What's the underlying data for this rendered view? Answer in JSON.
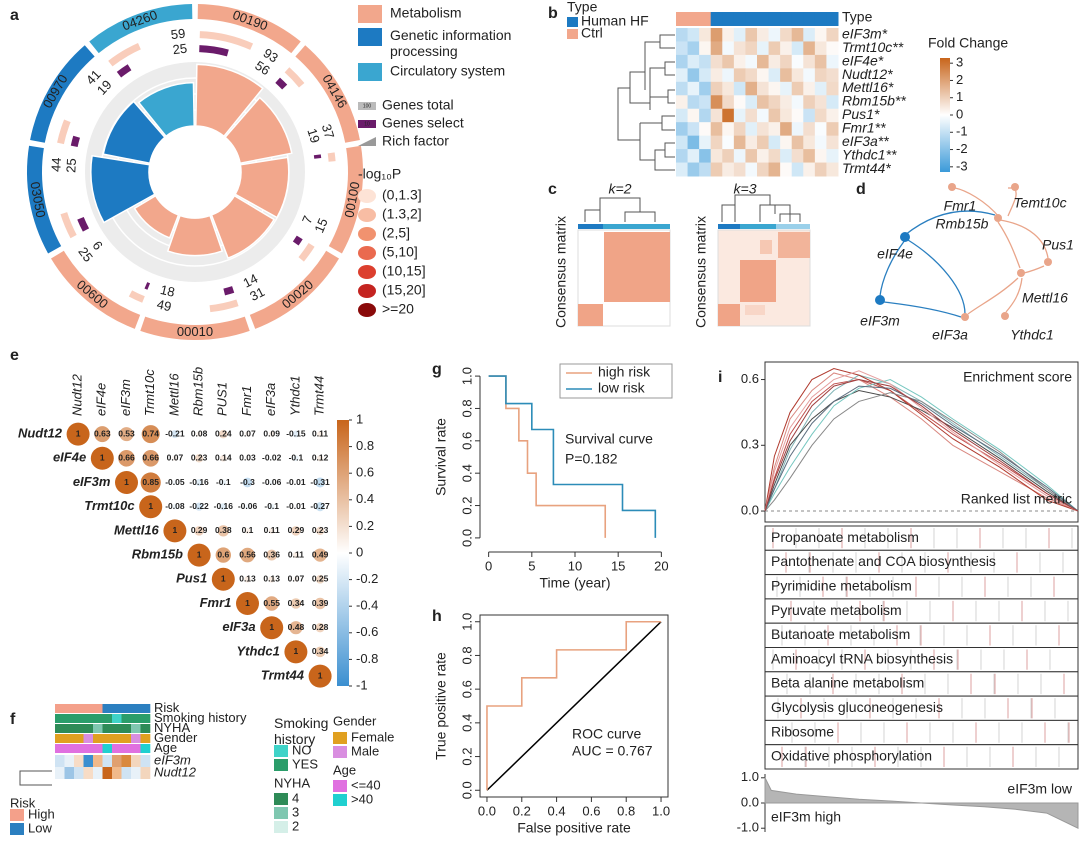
{
  "chart_data": [
    {
      "type": "radial",
      "label": "a",
      "sectors": [
        {
          "name": "00190",
          "total": 93,
          "select": 56,
          "color": "#f2a78c"
        },
        {
          "name": "04146",
          "total": 37,
          "select": 19,
          "color": "#f2a78c"
        },
        {
          "name": "00100",
          "total": 15,
          "select": 7,
          "color": "#f2a78c"
        },
        {
          "name": "00020",
          "total": 31,
          "select": 14,
          "color": "#f2a78c"
        },
        {
          "name": "00010",
          "total": 49,
          "select": 18,
          "color": "#f2a78c"
        },
        {
          "name": "00600",
          "total": 25,
          "select": 6,
          "color": "#f2a78c"
        },
        {
          "name": "03050",
          "total": 44,
          "select": 25,
          "color": "#1d7ac2"
        },
        {
          "name": "00970",
          "total": 41,
          "select": 19,
          "color": "#1d7ac2"
        },
        {
          "name": "04260",
          "total": 59,
          "select": 25,
          "color": "#3aa6d0"
        }
      ],
      "legend": [
        {
          "name": "Metabolism",
          "color": "#f2a78c"
        },
        {
          "name": "Genetic information processing",
          "color": "#1d7ac2"
        },
        {
          "name": "Circulatory system",
          "color": "#3aa6d0"
        }
      ],
      "keys": [
        {
          "name": "Genes total",
          "key": "100",
          "color": "#bbbbbb"
        },
        {
          "name": "Genes select",
          "key": "10",
          "color": "#6a1b6a"
        },
        {
          "name": "Rich factor",
          "color": "#999999"
        }
      ],
      "total_color": "#f9cdbb",
      "select_color": "#6a1b6a",
      "p_title": "-log₁₀P",
      "p_bins": [
        {
          "name": "(0,1.3]",
          "color": "#fde3d6"
        },
        {
          "name": "(1.3,2]",
          "color": "#f8bda4"
        },
        {
          "name": "(2,5]",
          "color": "#f1926f"
        },
        {
          "name": "(5,10]",
          "color": "#ea6a4f"
        },
        {
          "name": "(10,15]",
          "color": "#dc3f2e"
        },
        {
          "name": "(15,20]",
          "color": "#c42420"
        },
        {
          "name": ">=20",
          "color": "#8a0a0a"
        }
      ]
    },
    {
      "type": "heatmap",
      "label": "b",
      "legend_title": "Type",
      "annotation_label": "Type",
      "groups": [
        {
          "name": "Human HF",
          "color": "#1d7ac2"
        },
        {
          "name": "Ctrl",
          "color": "#f2a78c"
        }
      ],
      "column_colors": [
        "#f2a78c",
        "#f2a78c",
        "#f2a78c",
        "#1d7ac2",
        "#1d7ac2",
        "#1d7ac2",
        "#1d7ac2",
        "#1d7ac2",
        "#1d7ac2",
        "#1d7ac2",
        "#1d7ac2",
        "#1d7ac2",
        "#1d7ac2",
        "#1d7ac2"
      ],
      "rows": [
        "eIF3m*",
        "Trmt10c**",
        "eIF4e*",
        "Nudt12*",
        "Mettl16*",
        "Rbm15b**",
        "Pus1*",
        "Fmr1**",
        "eIF3a**",
        "Ythdc1**",
        "Trmt44*"
      ],
      "matrix": [
        [
          -1.2,
          -0.8,
          0.5,
          2.1,
          0.3,
          -0.5,
          1.2,
          0.4,
          -0.3,
          0.8,
          1.5,
          -0.6,
          0.2,
          0.9
        ],
        [
          -0.9,
          -1.5,
          0.2,
          1.8,
          -0.2,
          0.6,
          0.9,
          -0.4,
          1.1,
          0.3,
          -0.7,
          1.6,
          0.5,
          0.1
        ],
        [
          -1.4,
          -0.6,
          -1.0,
          0.7,
          1.2,
          0.3,
          -0.2,
          1.5,
          0.4,
          0.9,
          -0.1,
          0.6,
          1.3,
          -0.3
        ],
        [
          -0.5,
          -1.8,
          -0.7,
          0.4,
          -0.3,
          1.1,
          0.8,
          0.2,
          -0.6,
          1.4,
          0.5,
          -0.2,
          0.9,
          0.7
        ],
        [
          -1.1,
          -0.4,
          -1.6,
          1.0,
          0.5,
          -0.8,
          1.7,
          0.6,
          0.2,
          -0.4,
          1.1,
          0.3,
          -0.5,
          0.8
        ],
        [
          0.3,
          -1.2,
          -0.9,
          2.4,
          0.8,
          0.1,
          -0.6,
          1.3,
          0.9,
          0.4,
          -0.2,
          1.0,
          0.6,
          -0.7
        ],
        [
          -0.7,
          0.2,
          -1.3,
          0.6,
          3.0,
          -0.4,
          0.7,
          -0.2,
          1.2,
          0.5,
          0.1,
          -0.9,
          0.8,
          0.3
        ],
        [
          -1.6,
          -0.9,
          0.1,
          1.4,
          0.2,
          0.9,
          -0.5,
          0.6,
          0.3,
          1.8,
          -0.3,
          0.7,
          -0.1,
          1.1
        ],
        [
          -0.8,
          -2.2,
          -0.4,
          0.9,
          -0.1,
          1.5,
          0.4,
          1.1,
          -0.7,
          0.2,
          1.3,
          0.5,
          -0.2,
          0.6
        ],
        [
          -1.3,
          -0.5,
          -2.0,
          0.5,
          1.0,
          -0.3,
          1.2,
          0.3,
          0.8,
          -0.6,
          0.7,
          1.4,
          0.2,
          -0.4
        ],
        [
          -0.6,
          -1.7,
          -1.1,
          1.1,
          0.4,
          0.7,
          -0.2,
          0.9,
          1.6,
          0.1,
          -0.8,
          0.3,
          1.0,
          0.5
        ]
      ],
      "colorbar_title": "Fold Change",
      "clim": [
        -3.3,
        3.3
      ],
      "cticks": [
        3,
        2,
        1,
        0,
        -1,
        -2,
        -3
      ],
      "colormap": {
        "low": "#3b9ad9",
        "mid": "#ffffff",
        "high": "#c8651b"
      }
    },
    {
      "type": "consensus",
      "label": "c",
      "titles": [
        "k=2",
        "k=3"
      ],
      "ylabel": "Consensus matrix"
    },
    {
      "type": "network",
      "label": "d",
      "nodes": [
        "Fmr1",
        "Temt10c",
        "Rmb15b",
        "eIF4e",
        "Pus1",
        "Mettl16",
        "eIF3m",
        "eIF3a",
        "Ythdc1"
      ]
    },
    {
      "type": "correlation",
      "label": "e",
      "row_labels": [
        "Nudt12",
        "eIF4e",
        "eIF3m",
        "Trmt10c",
        "Mettl16",
        "Rbm15b",
        "Pus1",
        "Fmr1",
        "eIF3a",
        "Ythdc1",
        "Trmt44"
      ],
      "column_labels": [
        "Nudt12",
        "eIF4e",
        "eIF3m",
        "Trmt10c",
        "Mettl16",
        "Rbm15b",
        "PUS1",
        "Fmr1",
        "eIF3a",
        "Ythdc1",
        "Trmt44"
      ],
      "matrix": [
        [
          1,
          0.63,
          0.53,
          0.74,
          -0.21,
          0.08,
          0.24,
          0.07,
          0.09,
          -0.15,
          0.11
        ],
        [
          1,
          0.66,
          0.66,
          0.07,
          0.23,
          0.14,
          0.03,
          -0.02,
          -0.1,
          0.12
        ],
        [
          1,
          0.85,
          -0.05,
          -0.16,
          -0.1,
          -0.3,
          -0.06,
          -0.01,
          -0.31
        ],
        [
          1,
          -0.08,
          -0.22,
          -0.16,
          -0.06,
          -0.1,
          -0.01,
          -0.27
        ],
        [
          1,
          0.29,
          0.38,
          0.1,
          0.11,
          0.29,
          0.23
        ],
        [
          1,
          0.6,
          0.56,
          0.36,
          0.11,
          0.49
        ],
        [
          1,
          0.13,
          0.13,
          0.07,
          0.25
        ],
        [
          1,
          0.55,
          0.34,
          0.39
        ],
        [
          1,
          0.48,
          0.28
        ],
        [
          1,
          0.34
        ],
        [
          1
        ]
      ],
      "clim": [
        -1,
        1
      ],
      "cticks": [
        1,
        0.8,
        0.6,
        0.4,
        0.2,
        0,
        -0.2,
        -0.4,
        -0.6,
        -0.8,
        -1
      ],
      "colormap": {
        "low": "#3b8fd0",
        "mid": "#ffffff",
        "high": "#c8651b"
      }
    },
    {
      "type": "annotation-heatmap",
      "label": "f",
      "rows": [
        {
          "name": "Risk",
          "colors": [
            "#f4a08a",
            "#f4a08a",
            "#f4a08a",
            "#f4a08a",
            "#f4a08a",
            "#2b7fc0",
            "#2b7fc0",
            "#2b7fc0",
            "#2b7fc0",
            "#2b7fc0"
          ]
        },
        {
          "name": "Smoking history",
          "colors": [
            "#2a9d6a",
            "#2a9d6a",
            "#2a9d6a",
            "#2a9d6a",
            "#2a9d6a",
            "#2a9d6a",
            "#3fd3c8",
            "#2a9d6a",
            "#2a9d6a",
            "#2a9d6a"
          ]
        },
        {
          "name": "NYHA",
          "colors": [
            "#2e8b57",
            "#2e8b57",
            "#2e8b57",
            "#2e8b57",
            "#7fc7b0",
            "#2e8b57",
            "#2e8b57",
            "#2e8b57",
            "#7fc7b0",
            "#2e8b57"
          ]
        },
        {
          "name": "Gender",
          "colors": [
            "#e0a020",
            "#e0a020",
            "#e0a020",
            "#d98ee0",
            "#e0a020",
            "#e0a020",
            "#e0a020",
            "#e0a020",
            "#d98ee0",
            "#e0a020"
          ]
        },
        {
          "name": "Age",
          "colors": [
            "#e070e0",
            "#e070e0",
            "#e070e0",
            "#e070e0",
            "#e070e0",
            "#20d0d0",
            "#e070e0",
            "#e070e0",
            "#e070e0",
            "#20d0d0"
          ]
        },
        {
          "name": "eIF3m",
          "colors": [
            "#cfe3f3",
            "#e8f1f8",
            "#f7dcc6",
            "#3b8fd0",
            "#f1b98a",
            "#cfe3f3",
            "#e0a070",
            "#d9893e",
            "#f3d6bd",
            "#cfe3f3"
          ]
        },
        {
          "name": "Nudt12",
          "colors": [
            "#e8f1f8",
            "#9cc5e6",
            "#cfe3f3",
            "#f7dcc6",
            "#e8f1f8",
            "#c8651b",
            "#f1b98a",
            "#cfe3f3",
            "#e8f1f8",
            "#f3d6bd"
          ]
        }
      ],
      "legends": [
        {
          "title": "Risk",
          "items": [
            {
              "name": "High",
              "color": "#f4a08a"
            },
            {
              "name": "Low",
              "color": "#2b7fc0"
            }
          ]
        },
        {
          "title": "Smoking history",
          "items": [
            {
              "name": "NO",
              "color": "#3fd3c8"
            },
            {
              "name": "YES",
              "color": "#2a9d6a"
            }
          ]
        },
        {
          "title": "NYHA",
          "items": [
            {
              "name": "4",
              "color": "#2e8b57"
            },
            {
              "name": "3",
              "color": "#7fc7b0"
            },
            {
              "name": "2",
              "color": "#d5efe8"
            }
          ]
        },
        {
          "title": "Gender",
          "items": [
            {
              "name": "Female",
              "color": "#e0a020"
            },
            {
              "name": "Male",
              "color": "#d98ee0"
            }
          ]
        },
        {
          "title": "Age",
          "items": [
            {
              "name": "<=40",
              "color": "#e070e0"
            },
            {
              "name": ">40",
              "color": "#20d0d0"
            }
          ]
        }
      ]
    },
    {
      "type": "line",
      "step": true,
      "label": "g",
      "xlabel": "Time (year)",
      "ylabel": "Survival rate",
      "annotations": [
        "Survival curve",
        "P=0.182"
      ],
      "series": [
        {
          "name": "high risk",
          "color": "#e8a27f",
          "x": [
            0,
            2,
            3.5,
            4.5,
            5.5,
            13.5
          ],
          "values": [
            1,
            0.8,
            0.6,
            0.4,
            0.2,
            0
          ]
        },
        {
          "name": "low risk",
          "color": "#2c8cb8",
          "x": [
            0,
            2,
            5,
            7.5,
            15.5,
            19.3
          ],
          "values": [
            1,
            0.83,
            0.67,
            0.33,
            0.17,
            0
          ]
        }
      ],
      "xlim": [
        -1,
        21
      ],
      "xticks": [
        0,
        5,
        10,
        15,
        20
      ],
      "ylim": [
        -0.05,
        1.05
      ],
      "yticks": [
        {
          "value": 0,
          "label": "0.0"
        },
        0.2,
        0.4,
        0.6,
        0.8,
        {
          "value": 1,
          "label": "1.0"
        }
      ]
    },
    {
      "type": "line",
      "step": false,
      "label": "h",
      "xlabel": "False positive rate",
      "ylabel": "True positive rate",
      "annotations": [
        "ROC curve",
        "AUC = 0.767"
      ],
      "series": [
        {
          "color": "#e8a27f",
          "x": [
            0,
            0,
            0.2,
            0.2,
            0.4,
            0.4,
            0.8,
            0.8,
            1
          ],
          "values": [
            0,
            0.5,
            0.5,
            0.667,
            0.667,
            0.833,
            0.833,
            1,
            1
          ]
        }
      ],
      "diagonal": true,
      "xlim": [
        -0.04,
        1.04
      ],
      "xticks": [
        {
          "value": 0,
          "label": "0.0"
        },
        0.2,
        0.4,
        0.6,
        0.8,
        {
          "value": 1,
          "label": "1.0"
        }
      ],
      "ylim": [
        -0.04,
        1.04
      ],
      "yticks": [
        {
          "value": 0,
          "label": "0.0"
        },
        0.2,
        0.4,
        0.6,
        0.8,
        {
          "value": 1,
          "label": "1.0"
        }
      ]
    },
    {
      "type": "gsea",
      "label": "i",
      "es_label": "Enrichment score",
      "metric_label": "Ranked list metric",
      "x": [
        0,
        0.03,
        0.08,
        0.15,
        0.22,
        0.3,
        0.4,
        0.5,
        0.6,
        0.75,
        0.9,
        1
      ],
      "series": [
        {
          "color": "#c0504d",
          "values": [
            0,
            0.15,
            0.35,
            0.5,
            0.58,
            0.6,
            0.55,
            0.45,
            0.35,
            0.22,
            0.08,
            0
          ]
        },
        {
          "color": "#d98880",
          "values": [
            0,
            0.2,
            0.42,
            0.55,
            0.63,
            0.6,
            0.52,
            0.42,
            0.3,
            0.18,
            0.06,
            0
          ]
        },
        {
          "color": "#7fb3b5",
          "values": [
            0,
            0.1,
            0.28,
            0.45,
            0.55,
            0.62,
            0.58,
            0.5,
            0.4,
            0.25,
            0.1,
            0
          ]
        },
        {
          "color": "#4a4a4a",
          "values": [
            0,
            0.12,
            0.3,
            0.42,
            0.5,
            0.55,
            0.52,
            0.46,
            0.38,
            0.24,
            0.09,
            0
          ]
        },
        {
          "color": "#b03a2e",
          "values": [
            0,
            0.25,
            0.45,
            0.6,
            0.65,
            0.62,
            0.55,
            0.44,
            0.33,
            0.2,
            0.05,
            0
          ]
        },
        {
          "color": "#76c7c0",
          "values": [
            0,
            0.08,
            0.2,
            0.35,
            0.48,
            0.56,
            0.6,
            0.52,
            0.42,
            0.28,
            0.12,
            0
          ]
        },
        {
          "color": "#888888",
          "values": [
            0,
            0.05,
            0.15,
            0.3,
            0.42,
            0.5,
            0.54,
            0.5,
            0.41,
            0.27,
            0.1,
            0
          ]
        },
        {
          "color": "#e6a0a0",
          "values": [
            0,
            0.18,
            0.38,
            0.52,
            0.6,
            0.64,
            0.58,
            0.47,
            0.36,
            0.21,
            0.07,
            0
          ]
        },
        {
          "color": "#5d6d7e",
          "values": [
            0,
            0.1,
            0.25,
            0.4,
            0.5,
            0.57,
            0.56,
            0.49,
            0.39,
            0.26,
            0.11,
            0
          ]
        },
        {
          "color": "#a04040",
          "values": [
            0,
            0.14,
            0.32,
            0.48,
            0.57,
            0.6,
            0.57,
            0.48,
            0.37,
            0.23,
            0.08,
            0
          ]
        }
      ],
      "ylim": [
        -0.05,
        0.68
      ],
      "yticks": [
        {
          "value": 0,
          "label": "0.0"
        },
        0.3,
        0.6
      ],
      "pathways": [
        "Propanoate metabolism",
        "Pantothenate and COA biosynthesis",
        "Pyrimidine metabolism",
        "Pyruvate metabolism",
        "Butanoate metabolism",
        "Aminoacyl tRNA biosynthesis",
        "Beta alanine metabolism",
        "Glycolysis gluconeogenesis",
        "Ribosome",
        "Oxidative phosphorylation"
      ],
      "metric": {
        "x": [
          0,
          0.02,
          0.1,
          0.2,
          0.3,
          0.4,
          0.5,
          0.6,
          0.7,
          0.8,
          0.9,
          1
        ],
        "values": [
          1.0,
          0.5,
          0.35,
          0.25,
          0.15,
          0.08,
          0,
          -0.08,
          -0.15,
          -0.25,
          -0.4,
          -1.0
        ],
        "ylim": [
          -1.15,
          1.15
        ],
        "yticks": [
          {
            "value": 1,
            "label": "1.0"
          },
          {
            "value": 0,
            "label": "0.0"
          },
          {
            "value": -1,
            "label": "-1.0"
          }
        ],
        "labels": [
          "eIF3m low",
          "eIF3m high"
        ]
      }
    }
  ]
}
